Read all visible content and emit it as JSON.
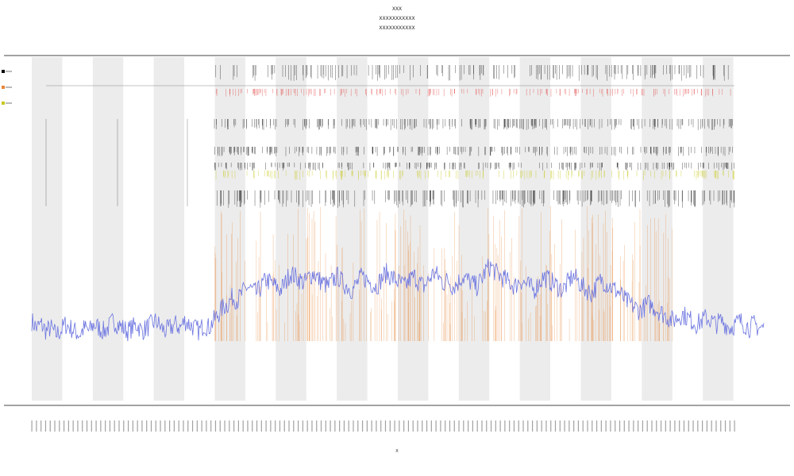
{
  "header": {
    "title": "XXX",
    "subtitle_1": "XXXXXXXXXXX",
    "subtitle_2": "XXXXXXXXXXX"
  },
  "legend": {
    "items": [
      {
        "label": "XXXX",
        "color": "#000000"
      },
      {
        "label": "XXXX",
        "color": "#e6863a"
      },
      {
        "label": "XXXX",
        "color": "#c8c820"
      }
    ]
  },
  "chart_data": {
    "type": "line",
    "title": "XXX",
    "xlabel": "X",
    "ylabel": "",
    "grid": false,
    "legend_position": "top-left",
    "colors": {
      "line_main": "#6b74e0",
      "spikes_orange": "#e6863a",
      "ticks_black": "#222222",
      "ticks_red": "#e24a4a",
      "ticks_yellow": "#c8c820",
      "band": "#ececec"
    },
    "tick_count": 154,
    "bands": 12,
    "series": [
      {
        "values": [
          0.14,
          0.12,
          0.13,
          0.11,
          0.12,
          0.1,
          0.11,
          0.13,
          0.12,
          0.11,
          0.1,
          0.12,
          0.11,
          0.13,
          0.12,
          0.11,
          0.12,
          0.14,
          0.13,
          0.12,
          0.11,
          0.12,
          0.13,
          0.11,
          0.12,
          0.13,
          0.14,
          0.12,
          0.11,
          0.12,
          0.13,
          0.12,
          0.14,
          0.13,
          0.12,
          0.11,
          0.13,
          0.12,
          0.14,
          0.16,
          0.18,
          0.19,
          0.21,
          0.2,
          0.22,
          0.24,
          0.23,
          0.22,
          0.24,
          0.26,
          0.25,
          0.24,
          0.23,
          0.25,
          0.28,
          0.27,
          0.26,
          0.25,
          0.27,
          0.28,
          0.26,
          0.25,
          0.24,
          0.26,
          0.27,
          0.25,
          0.24,
          0.23,
          0.25,
          0.27,
          0.26,
          0.25,
          0.24,
          0.26,
          0.28,
          0.27,
          0.26,
          0.25,
          0.24,
          0.26,
          0.27,
          0.25,
          0.24,
          0.26,
          0.28,
          0.27,
          0.25,
          0.26,
          0.24,
          0.25,
          0.27,
          0.26,
          0.25,
          0.24,
          0.26,
          0.29,
          0.3,
          0.28,
          0.27,
          0.26,
          0.25,
          0.24,
          0.26,
          0.25,
          0.24,
          0.23,
          0.25,
          0.27,
          0.26,
          0.25,
          0.24,
          0.23,
          0.25,
          0.27,
          0.26,
          0.24,
          0.23,
          0.22,
          0.24,
          0.26,
          0.25,
          0.24,
          0.23,
          0.22,
          0.2,
          0.19,
          0.18,
          0.17,
          0.18,
          0.19,
          0.18,
          0.17,
          0.16,
          0.15,
          0.14,
          0.15,
          0.16,
          0.15,
          0.14,
          0.13,
          0.14,
          0.15,
          0.14,
          0.13,
          0.14,
          0.13,
          0.12,
          0.13,
          0.14,
          0.13,
          0.12,
          0.13,
          0.12,
          0.12
        ]
      }
    ]
  }
}
